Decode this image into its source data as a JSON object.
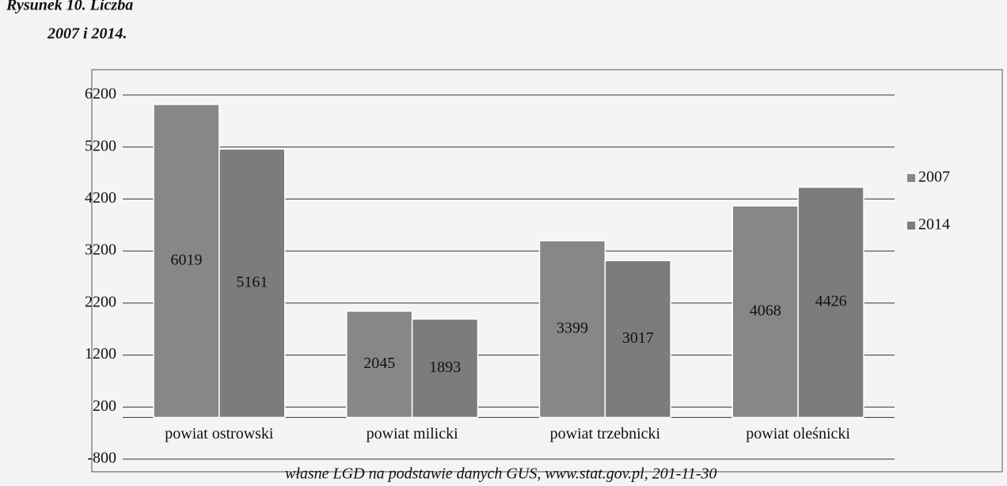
{
  "chart_data": {
    "type": "bar",
    "title": "Rysunek 10. Liczba",
    "subtitle": "2007 i 2014.",
    "source": "własne LGD na podstawie danych GUS, www.stat.gov.pl, 201-11-30",
    "categories": [
      "powiat ostrowski",
      "powiat milicki",
      "powiat trzebnicki",
      "powiat oleśnicki"
    ],
    "series": [
      {
        "name": "2007",
        "color": "#878787",
        "values": [
          6019,
          2045,
          3399,
          4068
        ]
      },
      {
        "name": "2014",
        "color": "#7c7c7c",
        "values": [
          5161,
          1893,
          3017,
          4426
        ]
      }
    ],
    "ylim": [
      -800,
      6200
    ],
    "yticks": [
      -800,
      200,
      1200,
      2200,
      3200,
      4200,
      5200,
      6200
    ],
    "grid": true,
    "legend": "right"
  }
}
